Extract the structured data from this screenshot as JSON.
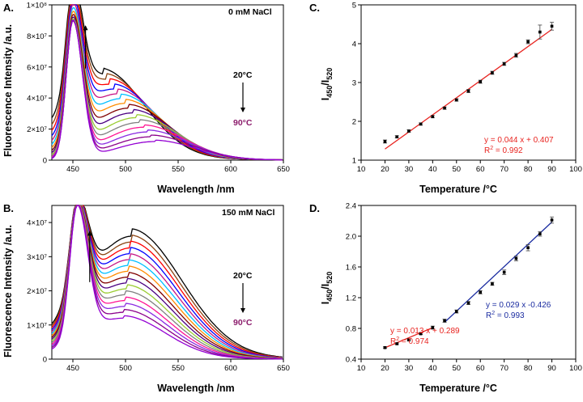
{
  "colors": {
    "lines_top": [
      "#000000",
      "#8B4513",
      "#FF0000",
      "#0000FF",
      "#C71585",
      "#00BFFF",
      "#FF8C00",
      "#800000",
      "#4B0082",
      "#9ACD32",
      "#808080",
      "#FF1493",
      "#8A2BE2",
      "#8B008B",
      "#9400D3",
      "#FF00FF"
    ],
    "cold": "#000000",
    "hot_label": "#8B1A6B",
    "fit_red": "#E8231F",
    "fit_blue": "#1A2BA0"
  },
  "chart_data": [
    {
      "id": "A",
      "type": "line",
      "panel_label": "A.",
      "title": "",
      "annotation": "0 mM NaCl",
      "xlabel": "Wavelength /nm",
      "ylabel": "Fluorescence Intensity /a.u.",
      "xlim": [
        430,
        650
      ],
      "ylim": [
        0,
        100000000
      ],
      "xticks": [
        450,
        500,
        550,
        600,
        650
      ],
      "xtick_labels": [
        "450",
        "500",
        "550",
        "600",
        "650"
      ],
      "yticks": [
        0,
        20000000,
        40000000,
        60000000,
        80000000,
        100000000
      ],
      "ytick_labels": [
        "0",
        "2×10⁷",
        "4×10⁷",
        "6×10⁷",
        "8×10⁷",
        "1×10⁸"
      ],
      "temp_high_label": "20°C",
      "temp_low_label": "90°C",
      "series_count": 15,
      "peak1": {
        "x": 450,
        "width": 9,
        "min": 72000000,
        "max": 89000000
      },
      "peak2": {
        "x_start": 478,
        "x_end": 528,
        "width_start": 40,
        "width_end": 38,
        "min": 12000000,
        "max": 55000000
      },
      "tail": 0.6
    },
    {
      "id": "B",
      "type": "line",
      "panel_label": "B.",
      "title": "",
      "annotation": "150 mM NaCl",
      "xlabel": "Wavelength /nm",
      "ylabel": "Fluorescence Intensity /a.u.",
      "xlim": [
        430,
        650
      ],
      "ylim": [
        0,
        45000000
      ],
      "xticks": [
        450,
        500,
        550,
        600,
        650
      ],
      "xtick_labels": [
        "450",
        "500",
        "550",
        "600",
        "650"
      ],
      "yticks": [
        0,
        10000000,
        20000000,
        30000000,
        40000000
      ],
      "ytick_labels": [
        "0",
        "1×10⁷",
        "2×10⁷",
        "3×10⁷",
        "4×10⁷"
      ],
      "temp_high_label": "20°C",
      "temp_low_label": "90°C",
      "series_count": 15,
      "peak1": {
        "x": 454,
        "width": 10,
        "min": 27500000,
        "max": 38500000
      },
      "peak2": {
        "x_start": 506,
        "x_end": 498,
        "width_start": 48,
        "width_end": 40,
        "min": 12000000,
        "max": 36000000
      },
      "tail": 0.5
    },
    {
      "id": "C",
      "type": "scatter",
      "panel_label": "C.",
      "xlabel": "Temperature /°C",
      "ylabel": "I450/I520",
      "ylabel_main": "I",
      "ylabel_sub": "450",
      "ylabel_slash": "/I",
      "ylabel_sub2": "520",
      "xlim": [
        10,
        100
      ],
      "ylim": [
        1,
        5
      ],
      "xticks": [
        10,
        20,
        30,
        40,
        50,
        60,
        70,
        80,
        90,
        100
      ],
      "xtick_labels": [
        "10",
        "20",
        "30",
        "40",
        "50",
        "60",
        "70",
        "80",
        "90",
        "100"
      ],
      "yticks": [
        1,
        2,
        3,
        4,
        5
      ],
      "ytick_labels": [
        "1",
        "2",
        "3",
        "4",
        "5"
      ],
      "x": [
        20,
        25,
        30,
        35,
        40,
        45,
        50,
        55,
        60,
        65,
        70,
        75,
        80,
        85,
        90
      ],
      "y": [
        1.48,
        1.6,
        1.75,
        1.93,
        2.12,
        2.34,
        2.55,
        2.78,
        3.02,
        3.25,
        3.48,
        3.7,
        4.05,
        4.3,
        4.45
      ],
      "err": [
        0.04,
        0.03,
        0.03,
        0.03,
        0.03,
        0.03,
        0.03,
        0.04,
        0.04,
        0.04,
        0.04,
        0.05,
        0.05,
        0.18,
        0.1
      ],
      "fits": [
        {
          "slope": 0.044,
          "intercept": 0.407,
          "x_from": 20,
          "x_to": 90,
          "color": "#E8231F",
          "equation": "y = 0.044 x + 0.407",
          "r2_value": " = 0.992"
        }
      ]
    },
    {
      "id": "D",
      "type": "scatter",
      "panel_label": "D.",
      "xlabel": "Temperature /°C",
      "ylabel": "I450/I520",
      "ylabel_main": "I",
      "ylabel_sub": "450",
      "ylabel_slash": "/I",
      "ylabel_sub2": "520",
      "xlim": [
        10,
        100
      ],
      "ylim": [
        0.4,
        2.4
      ],
      "xticks": [
        10,
        20,
        30,
        40,
        50,
        60,
        70,
        80,
        90,
        100
      ],
      "xtick_labels": [
        "10",
        "20",
        "30",
        "40",
        "50",
        "60",
        "70",
        "80",
        "90",
        "100"
      ],
      "yticks": [
        0.4,
        0.8,
        1.2,
        1.6,
        2.0,
        2.4
      ],
      "ytick_labels": [
        "0.4",
        "0.8",
        "1.2",
        "1.6",
        "2.0",
        "2.4"
      ],
      "x": [
        20,
        25,
        30,
        35,
        40,
        45,
        50,
        55,
        60,
        65,
        70,
        75,
        80,
        85,
        90
      ],
      "y": [
        0.55,
        0.6,
        0.65,
        0.73,
        0.81,
        0.9,
        1.02,
        1.13,
        1.27,
        1.38,
        1.53,
        1.71,
        1.85,
        2.03,
        2.21
      ],
      "err": [
        0.01,
        0.01,
        0.01,
        0.01,
        0.02,
        0.02,
        0.02,
        0.02,
        0.02,
        0.02,
        0.03,
        0.03,
        0.04,
        0.03,
        0.04
      ],
      "fits": [
        {
          "slope": 0.013,
          "intercept": 0.289,
          "x_from": 20,
          "x_to": 40,
          "color": "#E8231F",
          "equation": "y = 0.013 x + 0.289",
          "r2_value": " = 0.974"
        },
        {
          "slope": 0.029,
          "intercept": -0.426,
          "x_from": 45,
          "x_to": 90,
          "color": "#1A2BA0",
          "equation": "y = 0.029 x -0.426",
          "r2_value": " = 0.993"
        }
      ]
    }
  ]
}
